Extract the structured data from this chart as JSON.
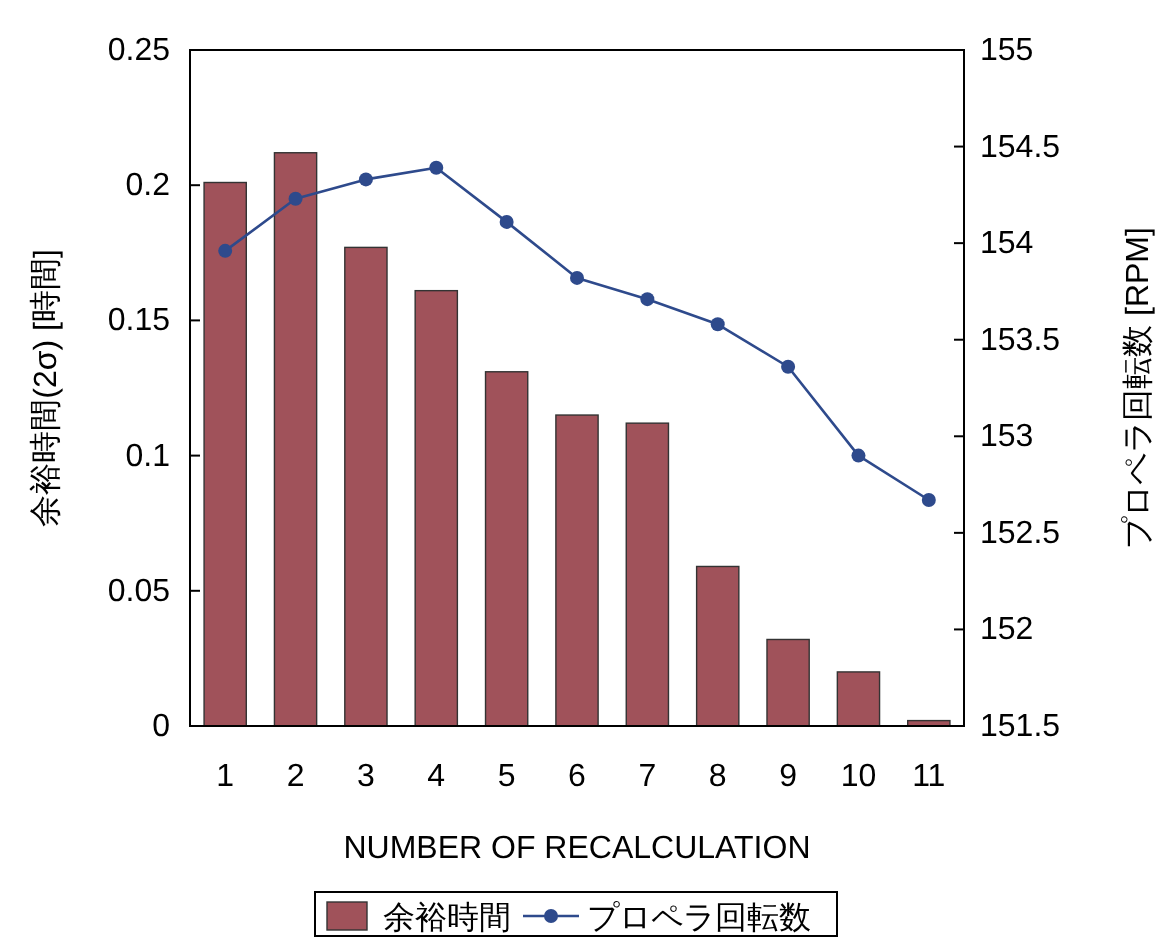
{
  "chart_data": {
    "type": "bar",
    "xlabel": "NUMBER OF RECALCULATION",
    "ylabel": "余裕時間(2σ) [時間]",
    "y2label": "プロペラ回転数 [RPM]",
    "categories": [
      "1",
      "2",
      "3",
      "4",
      "5",
      "6",
      "7",
      "8",
      "9",
      "10",
      "11"
    ],
    "series": [
      {
        "name": "余裕時間",
        "color": "#a0525a",
        "values": [
          0.201,
          0.212,
          0.177,
          0.161,
          0.131,
          0.115,
          0.112,
          0.059,
          0.032,
          0.02,
          0.002
        ]
      },
      {
        "name": "プロペラ回転数",
        "color": "#2e4a8c",
        "type": "line",
        "axis": "y2",
        "marker": "circle",
        "values": [
          153.96,
          154.23,
          154.33,
          154.39,
          154.11,
          153.82,
          153.71,
          153.58,
          153.36,
          152.9,
          152.67
        ]
      }
    ],
    "ylim": [
      0,
      0.25
    ],
    "yticks": [
      0,
      0.05,
      0.1,
      0.15,
      0.2,
      0.25
    ],
    "y2lim": [
      151.5,
      155
    ],
    "y2ticks": [
      151.5,
      152,
      152.5,
      153,
      153.5,
      154,
      154.5,
      155
    ],
    "grid": false,
    "legend": "bottom"
  }
}
